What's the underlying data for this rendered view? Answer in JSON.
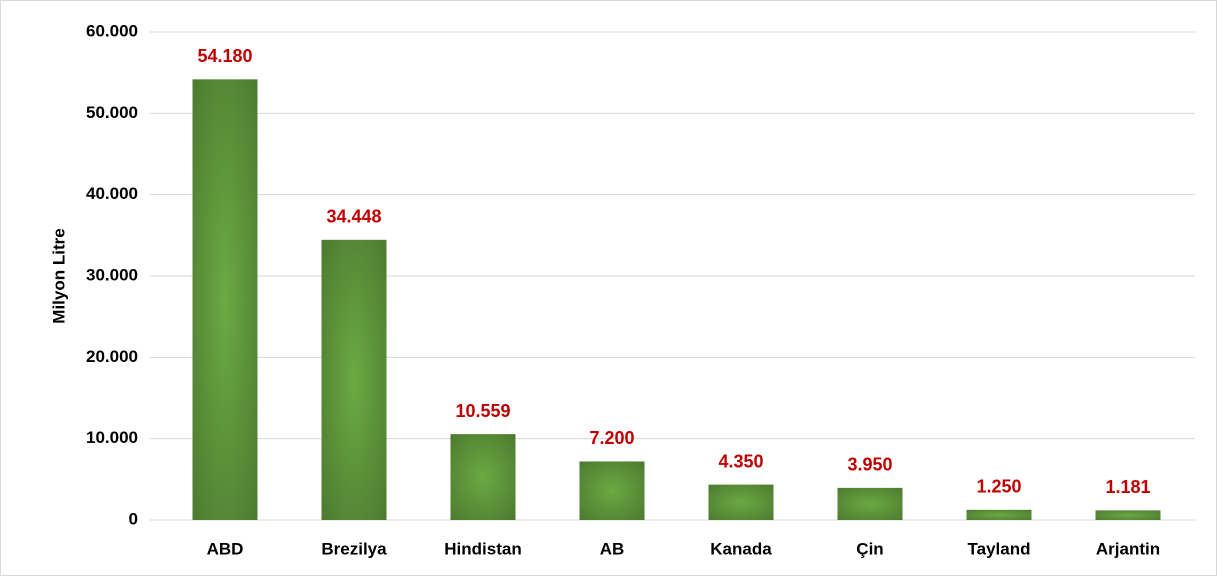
{
  "chart_data": {
    "type": "bar",
    "y_label": "Milyon Litre",
    "categories": [
      "ABD",
      "Brezilya",
      "Hindistan",
      "AB",
      "Kanada",
      "Çin",
      "Tayland",
      "Arjantin"
    ],
    "values": [
      54180,
      34448,
      10559,
      7200,
      4350,
      3950,
      1250,
      1181
    ],
    "value_labels": [
      "54.180",
      "34.448",
      "10.559",
      "7.200",
      "4.350",
      "3.950",
      "1.250",
      "1.181"
    ],
    "color": "#5f9a3c",
    "ylim": [
      0,
      60000
    ],
    "yticks": [
      0,
      {
        "value": 10000,
        "label": "10.000"
      },
      {
        "value": 20000,
        "label": "20.000"
      },
      {
        "value": 30000,
        "label": "30.000"
      },
      {
        "value": 40000,
        "label": "40.000"
      },
      {
        "value": 50000,
        "label": "50.000"
      },
      {
        "value": 60000,
        "label": "60.000"
      }
    ],
    "grid": true
  }
}
